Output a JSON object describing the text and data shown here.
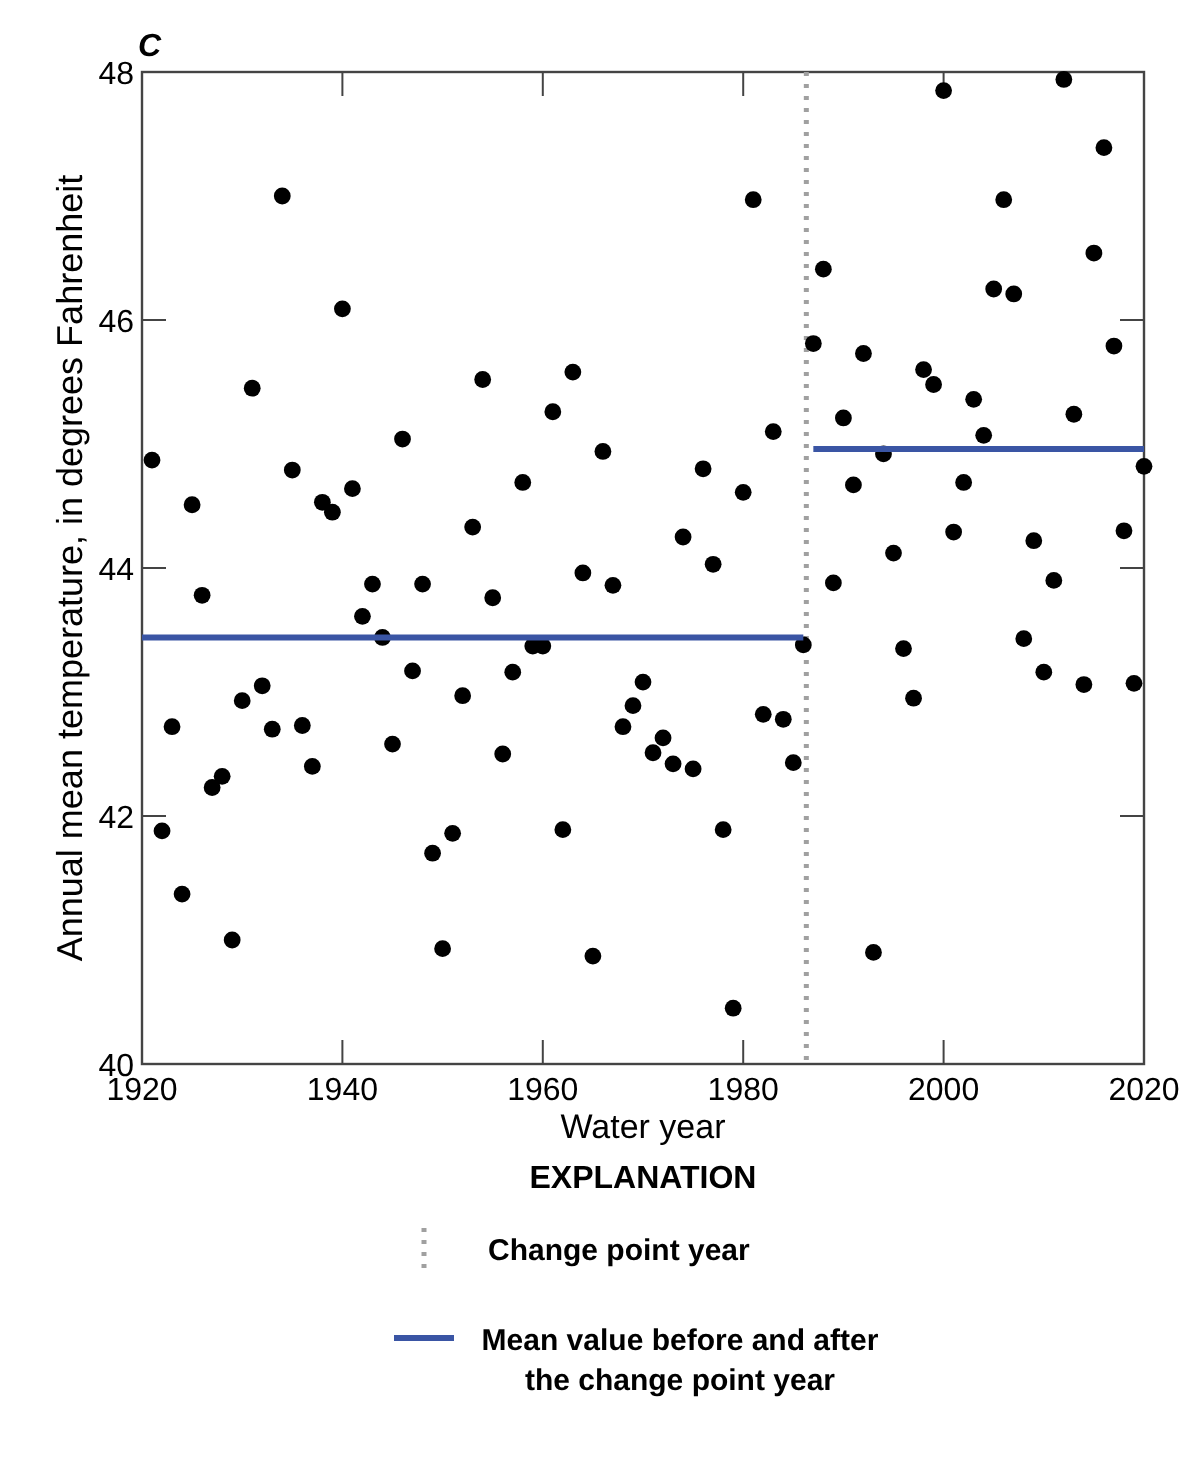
{
  "chart_data": {
    "type": "scatter",
    "title": "C",
    "xlabel": "Water year",
    "ylabel": "Annual mean temperature, in degrees Fahrenheit",
    "legend_title": "EXPLANATION",
    "legend": "bottom",
    "grid": false,
    "xlim": [
      1920,
      2020
    ],
    "xticks": [
      1920,
      1940,
      1960,
      1980,
      2000,
      2020
    ],
    "ylim": [
      40,
      48
    ],
    "yticks": [
      40,
      42,
      44,
      46,
      48
    ],
    "series": [
      {
        "color": "#000000",
        "marker": "circle",
        "x": [
          1921,
          1922,
          1923,
          1924,
          1925,
          1926,
          1927,
          1928,
          1929,
          1930,
          1931,
          1932,
          1933,
          1934,
          1935,
          1936,
          1937,
          1938,
          1939,
          1940,
          1941,
          1942,
          1943,
          1944,
          1945,
          1946,
          1947,
          1948,
          1949,
          1950,
          1951,
          1952,
          1953,
          1954,
          1955,
          1956,
          1957,
          1958,
          1959,
          1960,
          1961,
          1962,
          1963,
          1964,
          1965,
          1966,
          1967,
          1968,
          1969,
          1970,
          1971,
          1972,
          1973,
          1974,
          1975,
          1976,
          1977,
          1978,
          1979,
          1980,
          1981,
          1982,
          1983,
          1984,
          1985,
          1986,
          1987,
          1988,
          1989,
          1990,
          1991,
          1992,
          1993,
          1994,
          1995,
          1996,
          1997,
          1998,
          1999,
          2000,
          2001,
          2002,
          2003,
          2004,
          2005,
          2006,
          2007,
          2008,
          2009,
          2010,
          2011,
          2012,
          2013,
          2014,
          2015,
          2016,
          2017,
          2018,
          2019,
          2020
        ],
        "values": [
          44.87,
          41.88,
          42.72,
          41.37,
          44.51,
          43.78,
          42.23,
          42.32,
          41.0,
          42.93,
          45.45,
          43.05,
          42.7,
          47.0,
          44.79,
          42.73,
          42.4,
          44.53,
          44.45,
          46.09,
          44.64,
          43.61,
          43.87,
          43.44,
          42.58,
          45.04,
          43.17,
          43.87,
          41.7,
          40.93,
          41.86,
          42.97,
          44.33,
          45.52,
          43.76,
          42.5,
          43.16,
          44.69,
          43.37,
          43.37,
          45.26,
          41.89,
          45.58,
          43.96,
          40.87,
          44.94,
          43.86,
          42.72,
          42.89,
          43.08,
          42.51,
          42.63,
          42.42,
          44.25,
          42.38,
          44.8,
          44.03,
          41.89,
          40.45,
          44.61,
          46.97,
          42.82,
          45.1,
          42.78,
          42.43,
          43.38,
          45.81,
          46.41,
          43.88,
          45.21,
          44.67,
          45.73,
          40.9,
          44.92,
          44.12,
          43.35,
          42.95,
          45.6,
          45.48,
          47.85,
          44.29,
          44.69,
          45.36,
          45.07,
          46.25,
          46.97,
          46.21,
          43.43,
          44.22,
          43.16,
          43.9,
          47.94,
          45.24,
          43.06,
          46.54,
          47.39,
          45.79,
          44.3,
          43.07,
          44.82
        ]
      },
      {
        "type": "line",
        "name": "Mean value before and after the change point year",
        "color": "#3a55a4",
        "line_style": "solid",
        "marker": "none",
        "x": [
          1920,
          1986,
          1986.5,
          1987,
          2020
        ],
        "values": [
          43.44,
          43.44,
          null,
          44.96,
          44.96
        ]
      }
    ],
    "ref_lines": [
      {
        "axis": "x",
        "value": 1986.3,
        "label": "Change point year",
        "color": "#a0a0a0",
        "line_style": "dotted"
      }
    ]
  }
}
